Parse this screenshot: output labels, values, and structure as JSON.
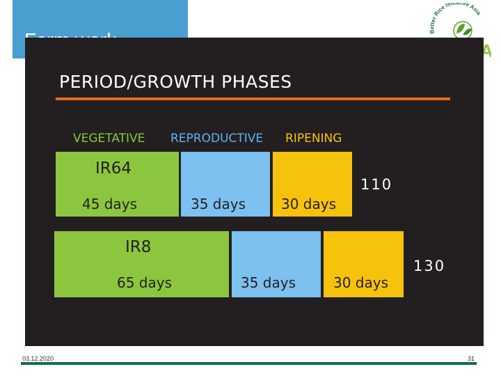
{
  "slide": {
    "title": "Farm work",
    "heading": "PERIOD/GROWTH PHASES",
    "phases": {
      "vegetative": "VEGETATIVE",
      "reproductive": "REPRODUCTIVE",
      "ripening": "RIPENING"
    },
    "varieties": [
      {
        "name": "IR64",
        "vegetative_days": "45 days",
        "reproductive_days": "35 days",
        "ripening_days": "30 days",
        "total": "110"
      },
      {
        "name": "IR8",
        "vegetative_days": "65 days",
        "reproductive_days": "35 days",
        "ripening_days": "30 days",
        "total": "130"
      }
    ]
  },
  "logo": {
    "arc_text": "Better Rice Initiative Asia",
    "letters": "A",
    "icon": "leaf-logo-icon"
  },
  "footer": {
    "date": "03.12.2020",
    "page": "31"
  },
  "colors": {
    "vegetative": "#8cc63f",
    "reproductive": "#7cc1f0",
    "ripening": "#f7c20b",
    "accent_line": "#e86a1d",
    "title_box": "#4b9fd0",
    "panel": "#231f20"
  }
}
